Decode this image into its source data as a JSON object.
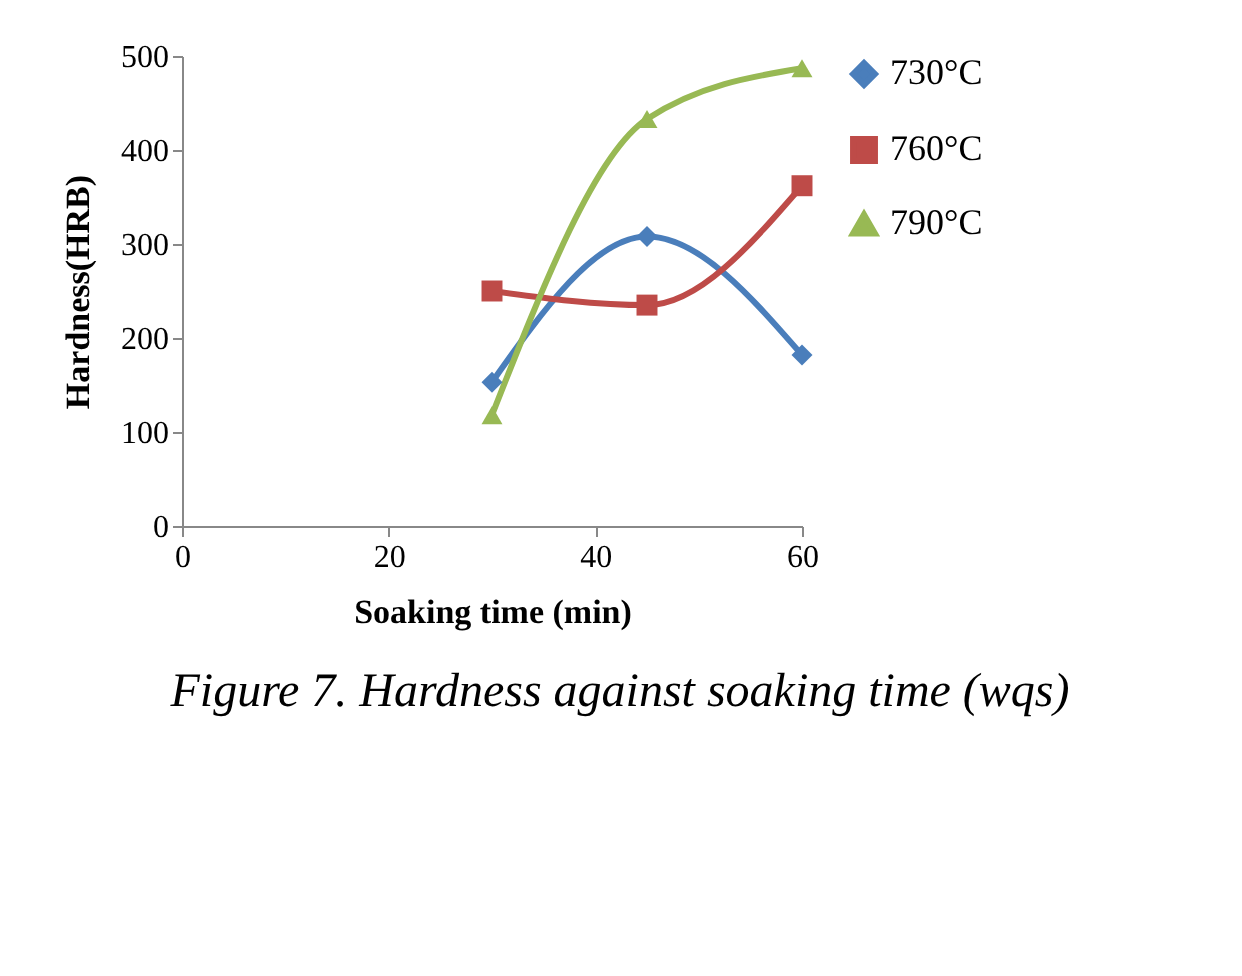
{
  "chart_data": {
    "type": "line",
    "xlabel": "Soaking time (min)",
    "ylabel": "Hardness(HRB)",
    "x": [
      30,
      45,
      60
    ],
    "series": [
      {
        "name": "730°C",
        "color": "#4a7ebb",
        "marker": "diamond",
        "values": [
          153,
          308,
          182
        ]
      },
      {
        "name": "760°C",
        "color": "#be4b48",
        "marker": "square",
        "values": [
          250,
          235,
          362
        ]
      },
      {
        "name": "790°C",
        "color": "#98b954",
        "marker": "triangle",
        "values": [
          118,
          433,
          487
        ]
      }
    ],
    "xlim": [
      0,
      60
    ],
    "xticks": [
      0,
      20,
      40,
      60
    ],
    "ylim": [
      0,
      500
    ],
    "yticks": [
      0,
      100,
      200,
      300,
      400,
      500
    ],
    "grid": false,
    "legend": "right",
    "annotations": [
      "Figure 7. Hardness against soaking time (wqs)"
    ]
  }
}
